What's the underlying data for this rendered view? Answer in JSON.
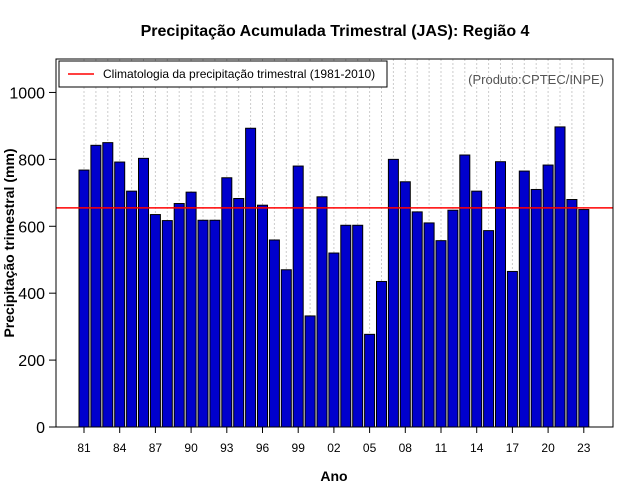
{
  "chart_data": {
    "type": "bar",
    "title": "Precipitação Acumulada Trimestral (JAS): Região 4",
    "xlabel": "Ano",
    "ylabel": "Precipitação trimestral (mm)",
    "credit": "(Produto:CPTEC/INPE)",
    "legend": {
      "label": "Climatologia da precipitação trimestral (1981-2010)",
      "position": "top-left"
    },
    "ylim": [
      0,
      1100
    ],
    "yticks": [
      0,
      200,
      400,
      600,
      800,
      1000
    ],
    "xtick_labels": [
      "81",
      "84",
      "87",
      "90",
      "93",
      "96",
      "99",
      "02",
      "05",
      "08",
      "11",
      "14",
      "17",
      "20",
      "23"
    ],
    "categories": [
      "1981",
      "1982",
      "1983",
      "1984",
      "1985",
      "1986",
      "1987",
      "1988",
      "1989",
      "1990",
      "1991",
      "1992",
      "1993",
      "1994",
      "1995",
      "1996",
      "1997",
      "1998",
      "1999",
      "2000",
      "2001",
      "2002",
      "2003",
      "2004",
      "2005",
      "2006",
      "2007",
      "2008",
      "2009",
      "2010",
      "2011",
      "2012",
      "2013",
      "2014",
      "2015",
      "2016",
      "2017",
      "2018",
      "2019",
      "2020",
      "2021",
      "2022",
      "2023"
    ],
    "values": [
      768,
      842,
      850,
      792,
      705,
      803,
      635,
      617,
      668,
      702,
      618,
      618,
      745,
      683,
      893,
      663,
      559,
      470,
      780,
      332,
      688,
      520,
      603,
      603,
      277,
      435,
      800,
      733,
      643,
      610,
      557,
      648,
      813,
      705,
      587,
      793,
      465,
      765,
      710,
      783,
      897,
      680,
      650
    ],
    "climatology": 655,
    "grid": "vertical dotted",
    "bar_color": "#0000CD",
    "climatology_color": "#FF0000"
  }
}
